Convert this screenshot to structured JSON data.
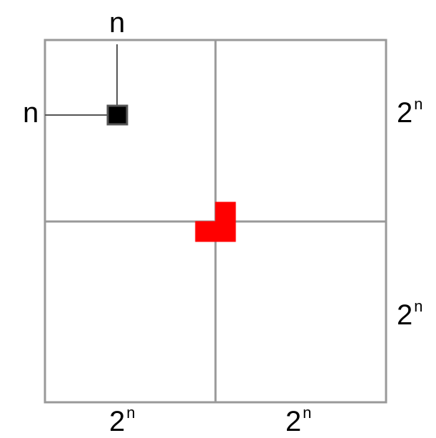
{
  "diagram": {
    "description_labels": {
      "marker_top": "n",
      "marker_left": "n"
    },
    "side_labels": {
      "right_top": {
        "base": "2",
        "exp": "n"
      },
      "right_bottom": {
        "base": "2",
        "exp": "n"
      },
      "bottom_left": {
        "base": "2",
        "exp": "n"
      },
      "bottom_right": {
        "base": "2",
        "exp": "n"
      }
    },
    "colors": {
      "grid_line": "#999999",
      "marker_fill": "#000000",
      "marker_border": "#555555",
      "tromino_fill": "#ff0000",
      "text": "#000000"
    }
  }
}
